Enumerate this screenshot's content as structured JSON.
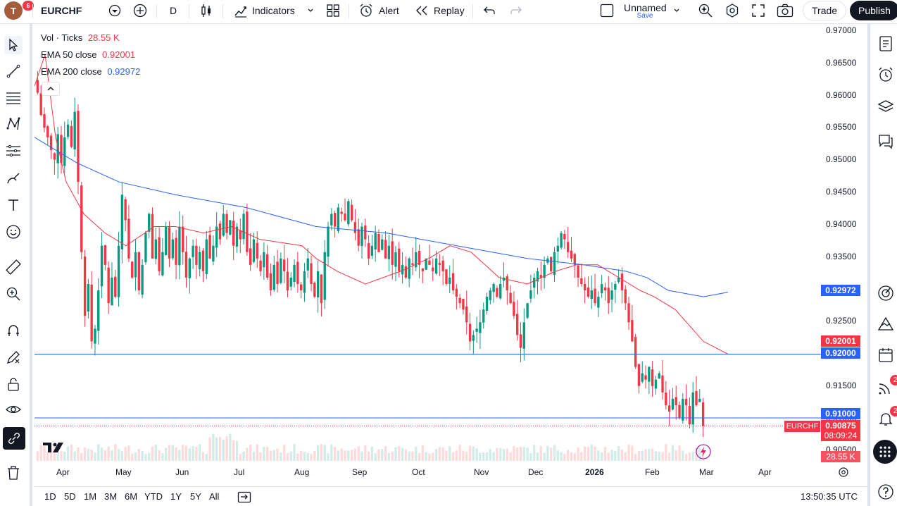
{
  "topbar": {
    "avatar_letter": "T",
    "avatar_badge": "6",
    "symbol": "EURCHF",
    "interval": "D",
    "indicators_label": "Indicators",
    "alert_label": "Alert",
    "replay_label": "Replay",
    "layout_name": "Unnamed",
    "layout_save": "Save",
    "trade_label": "Trade",
    "publish_label": "Publish"
  },
  "legend": {
    "vol_label": "Vol · Ticks",
    "vol_value": "28.55 K",
    "ema50_label": "EMA 50 close",
    "ema50_value": "0.92001",
    "ema200_label": "EMA 200 close",
    "ema200_value": "0.92972"
  },
  "colors": {
    "up": "#089981",
    "down": "#f23645",
    "ema50": "#f23645",
    "ema200": "#2962ff",
    "hline": "#2962ff"
  },
  "price_axis": {
    "labels": [
      "0.97000",
      "0.96500",
      "0.96000",
      "0.95500",
      "0.95000",
      "0.94500",
      "0.94000",
      "0.93500",
      "0.93000",
      "0.92500",
      "0.92000",
      "0.91500",
      "0.91000",
      "0.90500"
    ],
    "ema200_tag": "0.92972",
    "ema50_tag": "0.92001",
    "hline1_tag": "0.92000",
    "hline2_tag": "0.91000",
    "symbol_tag": "EURCHF",
    "last_price_tag": "0.90875",
    "countdown_tag": "08:09:24",
    "volume_tag": "28.55 K"
  },
  "time_axis": {
    "labels": [
      "Apr",
      "May",
      "Jun",
      "Jul",
      "Aug",
      "Sep",
      "Oct",
      "Nov",
      "Dec",
      "2026",
      "Feb",
      "Mar",
      "Apr"
    ]
  },
  "bottombar": {
    "ranges": [
      "1D",
      "5D",
      "1M",
      "3M",
      "6M",
      "YTD",
      "1Y",
      "5Y",
      "All"
    ],
    "clock": "13:50:35 UTC"
  },
  "rightbar": {
    "ideas_badge": "2",
    "alerts_badge": "2"
  },
  "chart_data": {
    "type": "candlestick",
    "symbol": "EURCHF",
    "interval": "D",
    "ylim": [
      0.9047,
      0.971
    ],
    "horizontal_lines": [
      0.92,
      0.91
    ],
    "last_price": 0.90875,
    "ema50_last": 0.92001,
    "ema200_last": 0.92972,
    "closes": [
      0.961,
      0.9575,
      0.9555,
      0.954,
      0.952,
      0.9505,
      0.9545,
      0.95,
      0.954,
      0.956,
      0.9525,
      0.958,
      0.947,
      0.936,
      0.926,
      0.931,
      0.922,
      0.924,
      0.93,
      0.937,
      0.934,
      0.928,
      0.932,
      0.929,
      0.937,
      0.945,
      0.941,
      0.935,
      0.932,
      0.936,
      0.93,
      0.934,
      0.939,
      0.942,
      0.935,
      0.938,
      0.933,
      0.936,
      0.94,
      0.935,
      0.938,
      0.934,
      0.94,
      0.936,
      0.932,
      0.935,
      0.937,
      0.934,
      0.936,
      0.933,
      0.938,
      0.935,
      0.937,
      0.94,
      0.938,
      0.942,
      0.939,
      0.941,
      0.937,
      0.94,
      0.938,
      0.942,
      0.936,
      0.934,
      0.938,
      0.935,
      0.933,
      0.936,
      0.932,
      0.93,
      0.934,
      0.931,
      0.935,
      0.933,
      0.93,
      0.932,
      0.934,
      0.931,
      0.93,
      0.933,
      0.935,
      0.931,
      0.929,
      0.933,
      0.928,
      0.936,
      0.94,
      0.942,
      0.94,
      0.943,
      0.942,
      0.941,
      0.944,
      0.941,
      0.939,
      0.937,
      0.94,
      0.938,
      0.935,
      0.937,
      0.939,
      0.936,
      0.938,
      0.935,
      0.937,
      0.934,
      0.936,
      0.933,
      0.934,
      0.932,
      0.935,
      0.934,
      0.936,
      0.934,
      0.933,
      0.935,
      0.934,
      0.933,
      0.935,
      0.934,
      0.933,
      0.931,
      0.932,
      0.93,
      0.929,
      0.928,
      0.927,
      0.925,
      0.922,
      0.923,
      0.924,
      0.925,
      0.927,
      0.929,
      0.93,
      0.931,
      0.929,
      0.931,
      0.932,
      0.93,
      0.928,
      0.926,
      0.923,
      0.921,
      0.925,
      0.928,
      0.93,
      0.932,
      0.933,
      0.932,
      0.934,
      0.935,
      0.933,
      0.936,
      0.937,
      0.939,
      0.938,
      0.936,
      0.935,
      0.934,
      0.932,
      0.931,
      0.93,
      0.929,
      0.93,
      0.928,
      0.929,
      0.931,
      0.93,
      0.928,
      0.93,
      0.931,
      0.932,
      0.93,
      0.928,
      0.925,
      0.922,
      0.918,
      0.915,
      0.917,
      0.916,
      0.918,
      0.915,
      0.916,
      0.917,
      0.914,
      0.912,
      0.911,
      0.913,
      0.912,
      0.91,
      0.913,
      0.912,
      0.909,
      0.914,
      0.912,
      0.913,
      0.90875
    ],
    "ema50": [
      [
        0,
        0.962
      ],
      [
        15,
        0.967
      ],
      [
        30,
        0.954
      ],
      [
        45,
        0.947
      ],
      [
        70,
        0.942
      ],
      [
        100,
        0.939
      ],
      [
        130,
        0.937
      ],
      [
        170,
        0.94
      ],
      [
        200,
        0.94
      ],
      [
        240,
        0.939
      ],
      [
        280,
        0.94
      ],
      [
        320,
        0.938
      ],
      [
        380,
        0.937
      ],
      [
        400,
        0.935
      ],
      [
        430,
        0.933
      ],
      [
        470,
        0.931
      ],
      [
        520,
        0.933
      ],
      [
        560,
        0.935
      ],
      [
        590,
        0.937
      ],
      [
        620,
        0.936
      ],
      [
        660,
        0.932
      ],
      [
        700,
        0.931
      ],
      [
        740,
        0.933
      ],
      [
        770,
        0.934
      ],
      [
        800,
        0.934
      ],
      [
        830,
        0.932
      ],
      [
        860,
        0.93
      ],
      [
        880,
        0.929
      ],
      [
        910,
        0.927
      ],
      [
        950,
        0.922
      ],
      [
        985,
        0.92
      ]
    ],
    "ema200": [
      [
        0,
        0.954
      ],
      [
        60,
        0.95
      ],
      [
        120,
        0.947
      ],
      [
        200,
        0.945
      ],
      [
        300,
        0.943
      ],
      [
        400,
        0.94
      ],
      [
        500,
        0.939
      ],
      [
        600,
        0.937
      ],
      [
        700,
        0.935
      ],
      [
        780,
        0.934
      ],
      [
        840,
        0.933
      ],
      [
        870,
        0.932
      ],
      [
        900,
        0.93
      ],
      [
        950,
        0.929
      ],
      [
        985,
        0.92972
      ]
    ]
  }
}
